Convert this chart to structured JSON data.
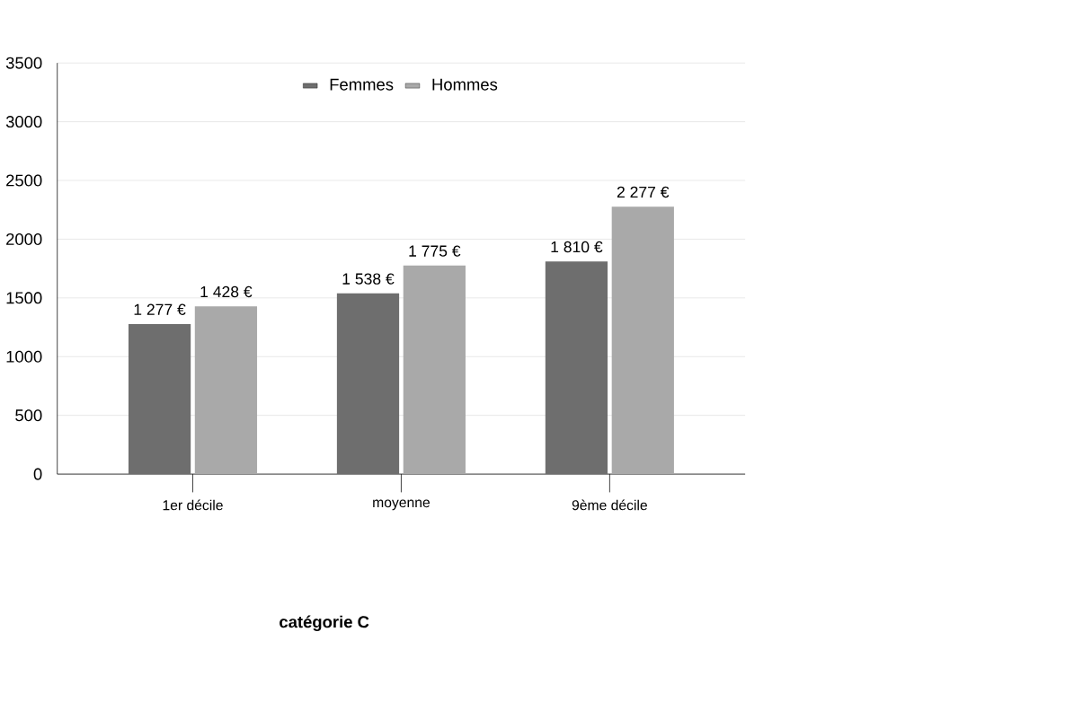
{
  "chart_data": {
    "type": "bar",
    "categories": [
      "1er décile",
      "moyenne",
      "9ème décile"
    ],
    "series": [
      {
        "name": "Femmes",
        "color": "#6e6e6e",
        "values": [
          1277,
          1538,
          1810
        ],
        "value_labels": [
          "1 277 €",
          "1 538 €",
          "1 810 €"
        ]
      },
      {
        "name": "Hommes",
        "color": "#a9a9a9",
        "values": [
          1428,
          1775,
          2277
        ],
        "value_labels": [
          "1 428 €",
          "1 775 €",
          "2 277 €"
        ]
      }
    ],
    "ylim": [
      0,
      3500
    ],
    "yticks": [
      0,
      500,
      1000,
      1500,
      2000,
      2500,
      3000,
      3500
    ],
    "grid": "y",
    "legend": "top",
    "annotations": [
      "**catégorie  C**"
    ]
  }
}
